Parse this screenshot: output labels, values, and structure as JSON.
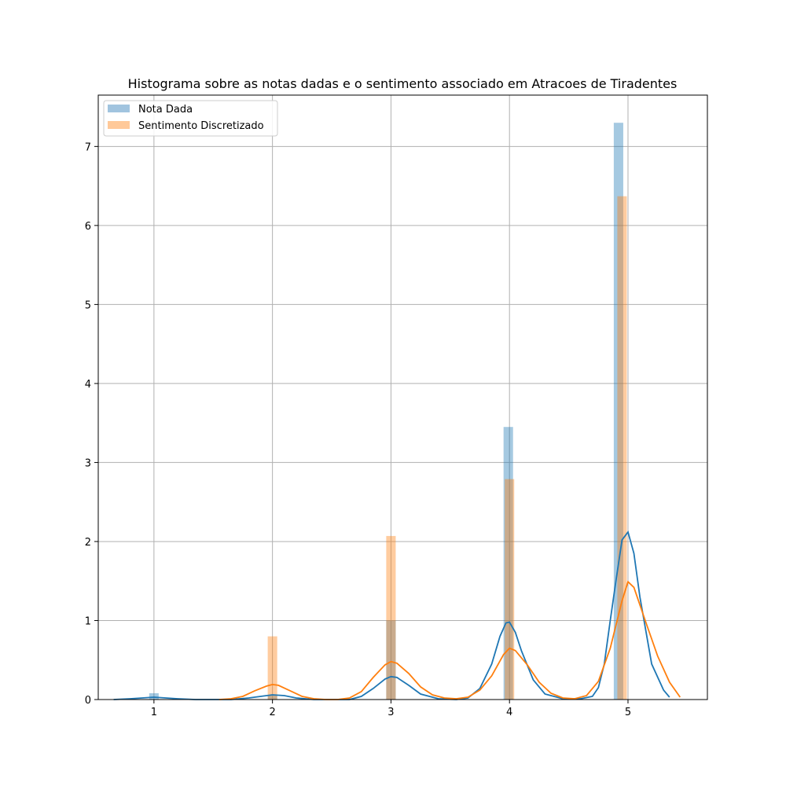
{
  "chart_data": {
    "type": "bar",
    "title": "Histograma sobre as notas dadas e o sentimento associado em Atracoes de Tiradentes",
    "xlabel": "",
    "ylabel": "",
    "xlim": [
      0.53,
      5.67
    ],
    "ylim": [
      0,
      7.65
    ],
    "x_ticks": [
      1,
      2,
      3,
      4,
      5
    ],
    "y_ticks": [
      0,
      1,
      2,
      3,
      4,
      5,
      6,
      7
    ],
    "grid": true,
    "legend_position": "top-left",
    "bin_width": 0.08,
    "series": [
      {
        "name": "Nota Dada",
        "color": "#1f77b4",
        "bar_color": "#a1c4df",
        "bars": [
          {
            "x": 1.0,
            "value": 0.08
          },
          {
            "x": 2.0,
            "value": 0.06
          },
          {
            "x": 3.0,
            "value": 1.0
          },
          {
            "x": 3.99,
            "value": 3.45
          },
          {
            "x": 4.92,
            "value": 7.3
          }
        ],
        "kde": {
          "x": [
            0.66,
            0.8,
            0.9,
            1.0,
            1.1,
            1.2,
            1.35,
            1.5,
            1.65,
            1.8,
            1.9,
            2.0,
            2.1,
            2.2,
            2.35,
            2.5,
            2.65,
            2.75,
            2.85,
            2.95,
            3.0,
            3.05,
            3.15,
            3.25,
            3.4,
            3.55,
            3.65,
            3.75,
            3.85,
            3.92,
            3.97,
            4.0,
            4.05,
            4.1,
            4.2,
            4.3,
            4.45,
            4.6,
            4.7,
            4.75,
            4.8,
            4.85,
            4.9,
            4.95,
            5.0,
            5.05,
            5.1,
            5.2,
            5.3,
            5.35
          ],
          "y": [
            0.0,
            0.01,
            0.02,
            0.03,
            0.02,
            0.01,
            0.0,
            0.0,
            0.0,
            0.02,
            0.04,
            0.06,
            0.05,
            0.02,
            0.0,
            0.0,
            0.0,
            0.04,
            0.14,
            0.26,
            0.29,
            0.28,
            0.18,
            0.07,
            0.01,
            0.0,
            0.02,
            0.14,
            0.45,
            0.8,
            0.97,
            0.98,
            0.85,
            0.62,
            0.25,
            0.07,
            0.01,
            0.01,
            0.04,
            0.15,
            0.45,
            1.0,
            1.52,
            2.02,
            2.12,
            1.85,
            1.3,
            0.45,
            0.12,
            0.03
          ]
        }
      },
      {
        "name": "Sentimento Discretizado",
        "color": "#ff7f0e",
        "bar_color": "#ffc999",
        "bars": [
          {
            "x": 2.0,
            "value": 0.8
          },
          {
            "x": 3.0,
            "value": 2.07
          },
          {
            "x": 4.0,
            "value": 2.79
          },
          {
            "x": 4.95,
            "value": 6.37
          }
        ],
        "kde": {
          "x": [
            1.55,
            1.65,
            1.75,
            1.85,
            1.95,
            2.0,
            2.05,
            2.15,
            2.25,
            2.35,
            2.45,
            2.55,
            2.65,
            2.75,
            2.85,
            2.95,
            3.0,
            3.05,
            3.15,
            3.25,
            3.35,
            3.45,
            3.55,
            3.65,
            3.75,
            3.85,
            3.95,
            4.0,
            4.05,
            4.15,
            4.25,
            4.35,
            4.45,
            4.55,
            4.65,
            4.75,
            4.85,
            4.95,
            5.0,
            5.05,
            5.15,
            5.25,
            5.35,
            5.44
          ],
          "y": [
            0.0,
            0.01,
            0.04,
            0.11,
            0.17,
            0.19,
            0.18,
            0.11,
            0.04,
            0.01,
            0.0,
            0.0,
            0.02,
            0.1,
            0.28,
            0.44,
            0.48,
            0.46,
            0.33,
            0.16,
            0.06,
            0.02,
            0.01,
            0.03,
            0.12,
            0.3,
            0.57,
            0.65,
            0.62,
            0.44,
            0.22,
            0.08,
            0.02,
            0.01,
            0.05,
            0.23,
            0.65,
            1.25,
            1.49,
            1.42,
            0.98,
            0.55,
            0.22,
            0.03
          ]
        }
      }
    ]
  }
}
